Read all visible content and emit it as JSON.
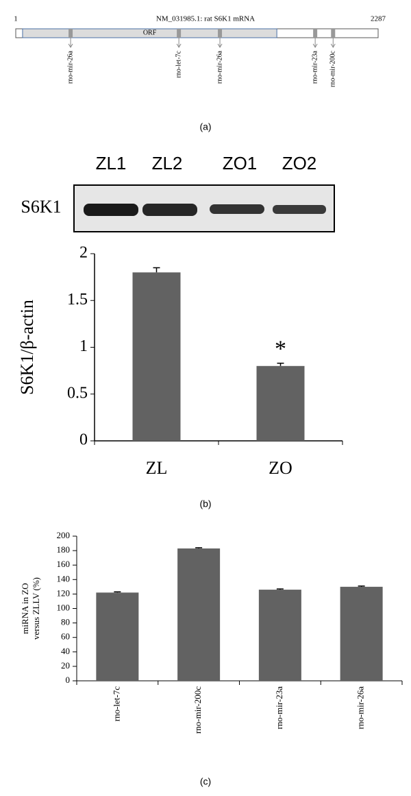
{
  "diagram": {
    "title": "NM_031985.1: rat S6K1 mRNA",
    "start": 1,
    "end": 2287,
    "orf": {
      "label": "ORF",
      "start": 44,
      "end": 1648
    },
    "sites": [
      {
        "label": "rno-mir-26a",
        "position": 347
      },
      {
        "label": "rno-let-7c",
        "position": 1030
      },
      {
        "label": "rno-mir-26a",
        "position": 1289
      },
      {
        "label": "rno-mir-23a",
        "position": 1890
      },
      {
        "label": "rno-mir-200c",
        "position": 2003
      }
    ],
    "caption": "(a)"
  },
  "blot": {
    "lanes": [
      "ZL1",
      "ZL2",
      "ZO1",
      "ZO2"
    ],
    "label": "S6K1"
  },
  "chart_data": [
    {
      "type": "bar",
      "y_label": "S6K1/β-actin",
      "categories": [
        "ZL",
        "ZO"
      ],
      "values": [
        1.8,
        0.8
      ],
      "errors": [
        0.05,
        0.03
      ],
      "annotations": [
        null,
        "*"
      ],
      "color": "#626262",
      "ylim": [
        0,
        2
      ],
      "yticks": [
        0,
        0.5,
        1,
        1.5,
        2
      ],
      "caption": "(b)"
    },
    {
      "type": "bar",
      "y_label": [
        "miRNA in ZO",
        "versus ZLLV (%)"
      ],
      "categories": [
        "rno-let-7c",
        "rno-mir-200c",
        "rno-mir-23a",
        "rno-mir-26a"
      ],
      "values": [
        122,
        183,
        126,
        130
      ],
      "errors": [
        1,
        1,
        1,
        1
      ],
      "color": "#626262",
      "ylim": [
        0,
        200
      ],
      "yticks": [
        0,
        20,
        40,
        60,
        80,
        100,
        120,
        140,
        160,
        180,
        200
      ],
      "caption": "(c)"
    }
  ]
}
